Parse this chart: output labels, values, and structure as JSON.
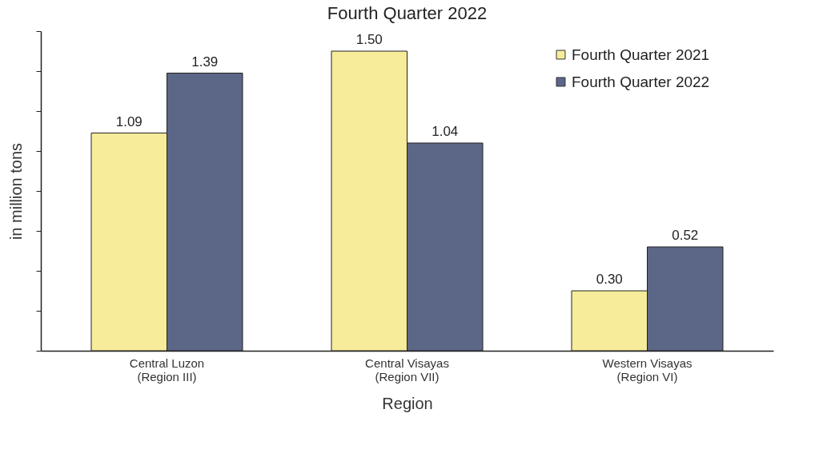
{
  "chart_data": {
    "type": "bar",
    "title": "Fourth Quarter 2022",
    "xlabel": "Region",
    "ylabel": "in million tons",
    "categories": [
      "Central Luzon\n(Region III)",
      "Central Visayas\n(Region VII)",
      "Western Visayas\n(Region VI)"
    ],
    "series": [
      {
        "name": "Fourth Quarter 2021",
        "color": "#f6ec9a",
        "values": [
          1.09,
          1.5,
          0.3
        ],
        "value_labels": [
          "1.09",
          "1.50",
          "0.30"
        ]
      },
      {
        "name": "Fourth Quarter 2022",
        "color": "#5c6787",
        "values": [
          1.39,
          1.04,
          0.52
        ],
        "value_labels": [
          "1.39",
          "1.04",
          "0.52"
        ]
      }
    ],
    "ylim": [
      0,
      1.6
    ],
    "yticks": [
      {
        "value": 0,
        "label": null
      },
      {
        "value": 0.2,
        "label": null
      },
      {
        "value": 0.4,
        "label": null
      },
      {
        "value": 0.6,
        "label": null
      },
      {
        "value": 0.8,
        "label": null
      },
      {
        "value": 1.0,
        "label": null
      },
      {
        "value": 1.2,
        "label": null
      },
      {
        "value": 1.4,
        "label": null
      },
      {
        "value": 1.6,
        "label": null
      }
    ],
    "legend": "top right",
    "tick_labels": "x"
  }
}
